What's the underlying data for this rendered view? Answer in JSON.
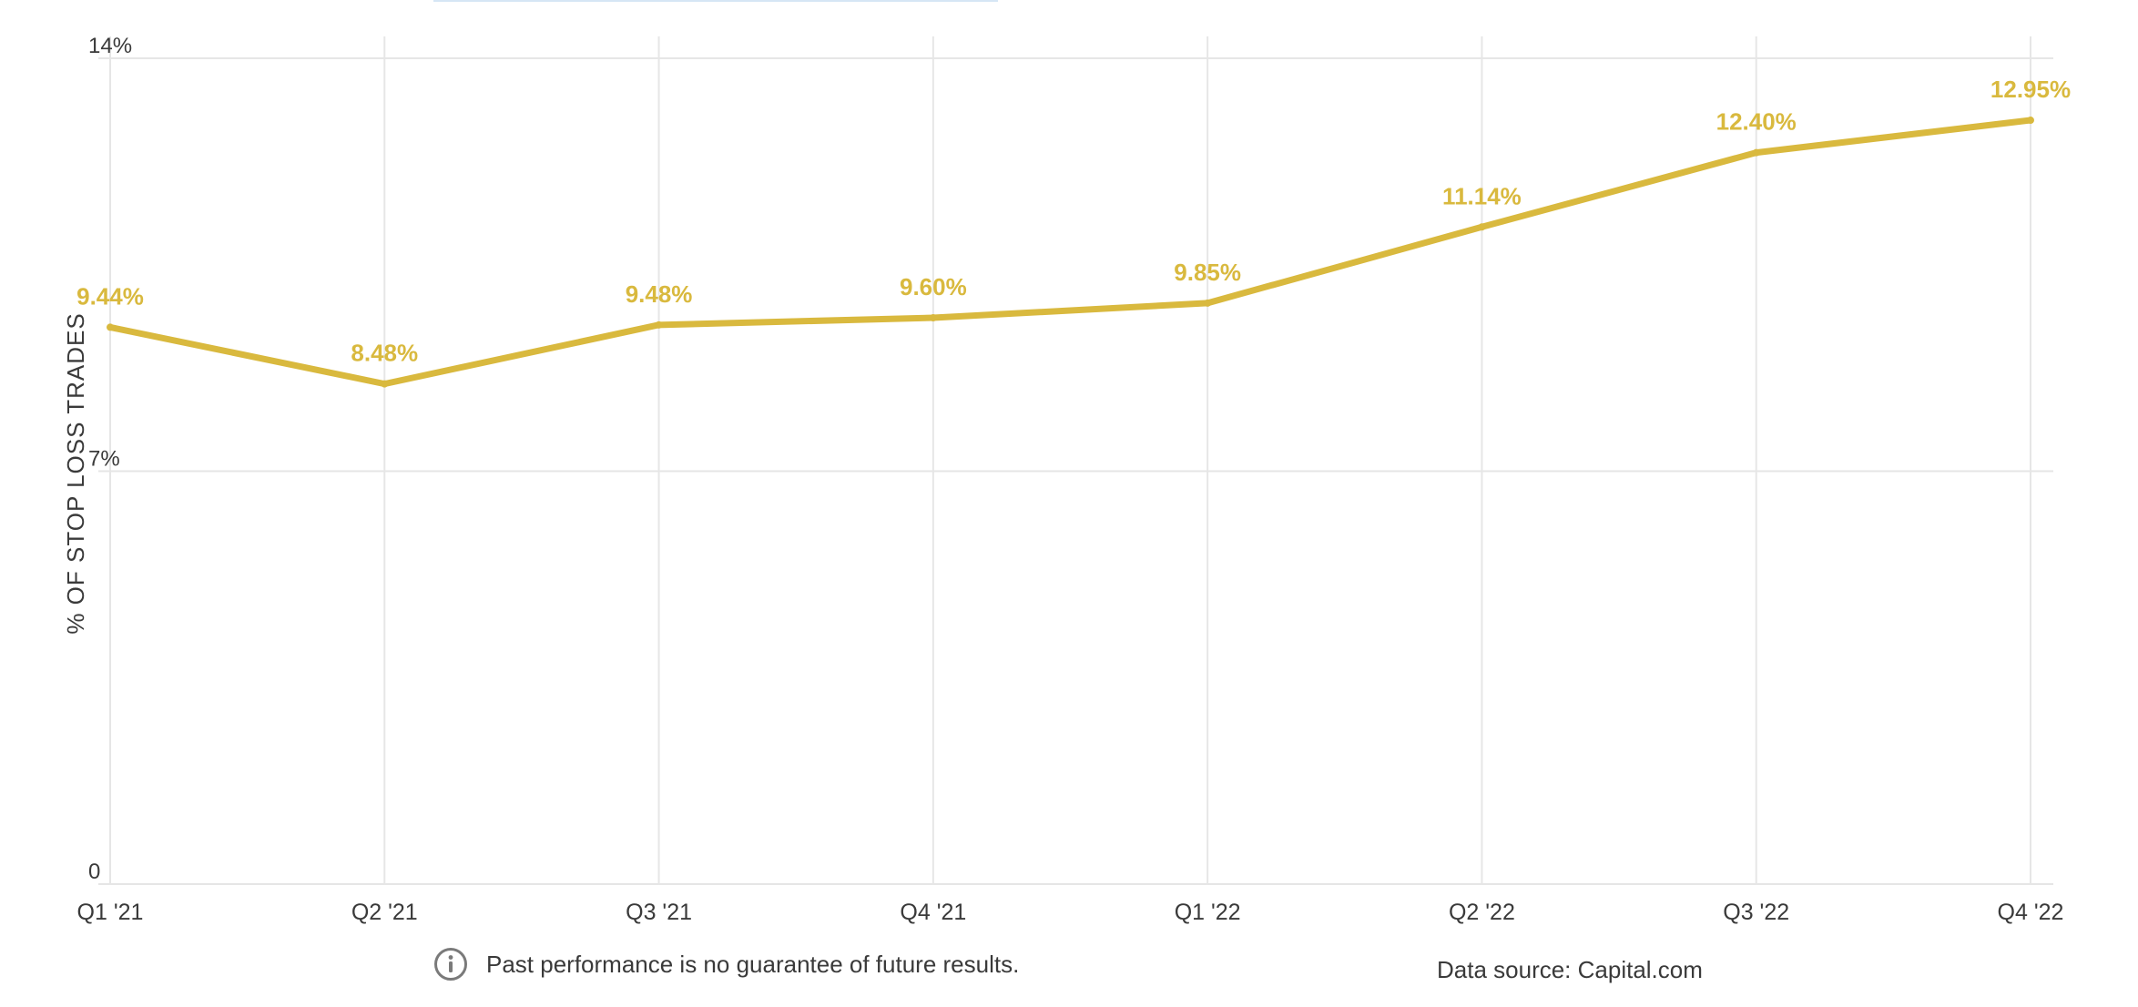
{
  "chart_data": {
    "type": "line",
    "categories": [
      "Q1 '21",
      "Q2 '21",
      "Q3 '21",
      "Q4 '21",
      "Q1 '22",
      "Q2 '22",
      "Q3 '22",
      "Q4 '22"
    ],
    "series": [
      {
        "values": [
          9.44,
          8.48,
          9.48,
          9.6,
          9.85,
          11.14,
          12.4,
          12.95
        ],
        "labels": [
          "9.44%",
          "8.48%",
          "9.48%",
          "9.60%",
          "9.85%",
          "11.14%",
          "12.40%",
          "12.95%"
        ],
        "color": "#d9b93e"
      }
    ],
    "ylabel": "% OF STOP LOSS TRADES",
    "ylim": [
      0,
      14
    ],
    "yticks": [
      0,
      7,
      14
    ],
    "ytick_labels": [
      "0",
      "7%",
      "14%"
    ],
    "grid": true,
    "gridline_color": "#e6e6e6"
  },
  "footer": {
    "disclaimer": "Past performance is no guarantee of future results.",
    "info_icon": "info-circle-icon",
    "source": "Data source: Capital.com"
  }
}
